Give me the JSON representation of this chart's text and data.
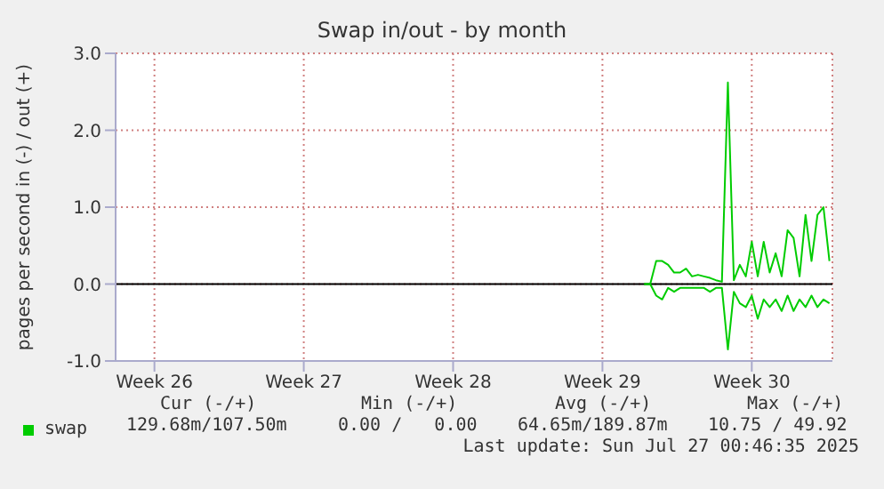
{
  "chart_data": {
    "type": "line",
    "title": "Swap in/out - by month",
    "ylabel": "pages per second in (-) / out (+)",
    "categories": [
      null,
      null,
      null,
      null,
      null,
      null,
      "Week 26",
      null,
      null,
      null,
      null,
      null,
      null,
      null,
      null,
      null,
      null,
      null,
      null,
      null,
      null,
      null,
      null,
      null,
      null,
      null,
      null,
      null,
      null,
      null,
      null,
      "Week 27",
      null,
      null,
      null,
      null,
      null,
      null,
      null,
      null,
      null,
      null,
      null,
      null,
      null,
      null,
      null,
      null,
      null,
      null,
      null,
      null,
      null,
      null,
      null,
      null,
      "Week 28",
      null,
      null,
      null,
      null,
      null,
      null,
      null,
      null,
      null,
      null,
      null,
      null,
      null,
      null,
      null,
      null,
      null,
      null,
      null,
      null,
      null,
      null,
      null,
      null,
      "Week 29",
      null,
      null,
      null,
      null,
      null,
      null,
      null,
      null,
      null,
      null,
      null,
      null,
      null,
      null,
      null,
      null,
      null,
      null,
      null,
      null,
      null,
      null,
      null,
      null,
      "Week 30",
      null,
      null,
      null,
      null,
      null,
      null,
      null,
      null,
      null,
      null,
      null,
      null,
      null
    ],
    "ylim": [
      -1,
      3
    ],
    "yticks": [
      {
        "value": -1,
        "label": "-1.0"
      },
      {
        "value": 0,
        "label": "0.0"
      },
      {
        "value": 1,
        "label": "1.0"
      },
      {
        "value": 2,
        "label": "2.0"
      },
      {
        "value": 3,
        "label": "3.0"
      }
    ],
    "grid": true,
    "legend": "bottom left",
    "line_style": "solid",
    "ref_lines": [
      {
        "axis": "y",
        "value": 0,
        "color": "#000000"
      }
    ],
    "series": [
      {
        "name": "swap",
        "color": "#00cc00",
        "values": [
          null,
          null,
          null,
          null,
          null,
          null,
          null,
          null,
          null,
          null,
          null,
          null,
          null,
          null,
          null,
          null,
          null,
          null,
          null,
          null,
          null,
          null,
          null,
          null,
          null,
          null,
          null,
          null,
          null,
          null,
          null,
          null,
          null,
          null,
          null,
          null,
          null,
          null,
          null,
          null,
          null,
          null,
          null,
          null,
          null,
          null,
          null,
          null,
          null,
          null,
          null,
          null,
          null,
          null,
          null,
          null,
          null,
          null,
          null,
          null,
          null,
          null,
          null,
          null,
          null,
          null,
          null,
          null,
          null,
          null,
          null,
          null,
          null,
          null,
          null,
          null,
          null,
          null,
          null,
          null,
          null,
          null,
          null,
          null,
          null,
          null,
          null,
          null,
          0,
          0,
          0.3,
          0.3,
          0.25,
          0.15,
          0.15,
          0.2,
          0.1,
          0.12,
          0.1,
          0.08,
          0.05,
          0.03,
          2.62,
          0.05,
          0.25,
          0.1,
          0.55,
          0.1,
          0.55,
          0.15,
          0.4,
          0.1,
          0.7,
          0.6,
          0.1,
          0.9,
          0.3,
          0.9,
          1.0,
          0.3
        ]
      },
      {
        "color": "#00cc00",
        "values": [
          null,
          null,
          null,
          null,
          null,
          null,
          null,
          null,
          null,
          null,
          null,
          null,
          null,
          null,
          null,
          null,
          null,
          null,
          null,
          null,
          null,
          null,
          null,
          null,
          null,
          null,
          null,
          null,
          null,
          null,
          null,
          null,
          null,
          null,
          null,
          null,
          null,
          null,
          null,
          null,
          null,
          null,
          null,
          null,
          null,
          null,
          null,
          null,
          null,
          null,
          null,
          null,
          null,
          null,
          null,
          null,
          null,
          null,
          null,
          null,
          null,
          null,
          null,
          null,
          null,
          null,
          null,
          null,
          null,
          null,
          null,
          null,
          null,
          null,
          null,
          null,
          null,
          null,
          null,
          null,
          null,
          null,
          null,
          null,
          null,
          null,
          null,
          null,
          0,
          0,
          -0.15,
          -0.2,
          -0.05,
          -0.1,
          -0.05,
          -0.05,
          -0.05,
          -0.05,
          -0.05,
          -0.1,
          -0.05,
          -0.05,
          -0.85,
          -0.1,
          -0.25,
          -0.3,
          -0.15,
          -0.45,
          -0.2,
          -0.3,
          -0.2,
          -0.35,
          -0.15,
          -0.35,
          -0.2,
          -0.3,
          -0.15,
          -0.3,
          -0.2,
          -0.25
        ]
      }
    ],
    "annotations": [
      "Cur (-/+)",
      "Min (-/+)",
      "Avg (-/+)",
      "Max (-/+)",
      "129.68m/107.50m",
      "0.00 /   0.00",
      "64.65m/189.87m",
      "10.75 / 49.92",
      "Last update: Sun Jul 27 00:46:35 2025"
    ]
  }
}
